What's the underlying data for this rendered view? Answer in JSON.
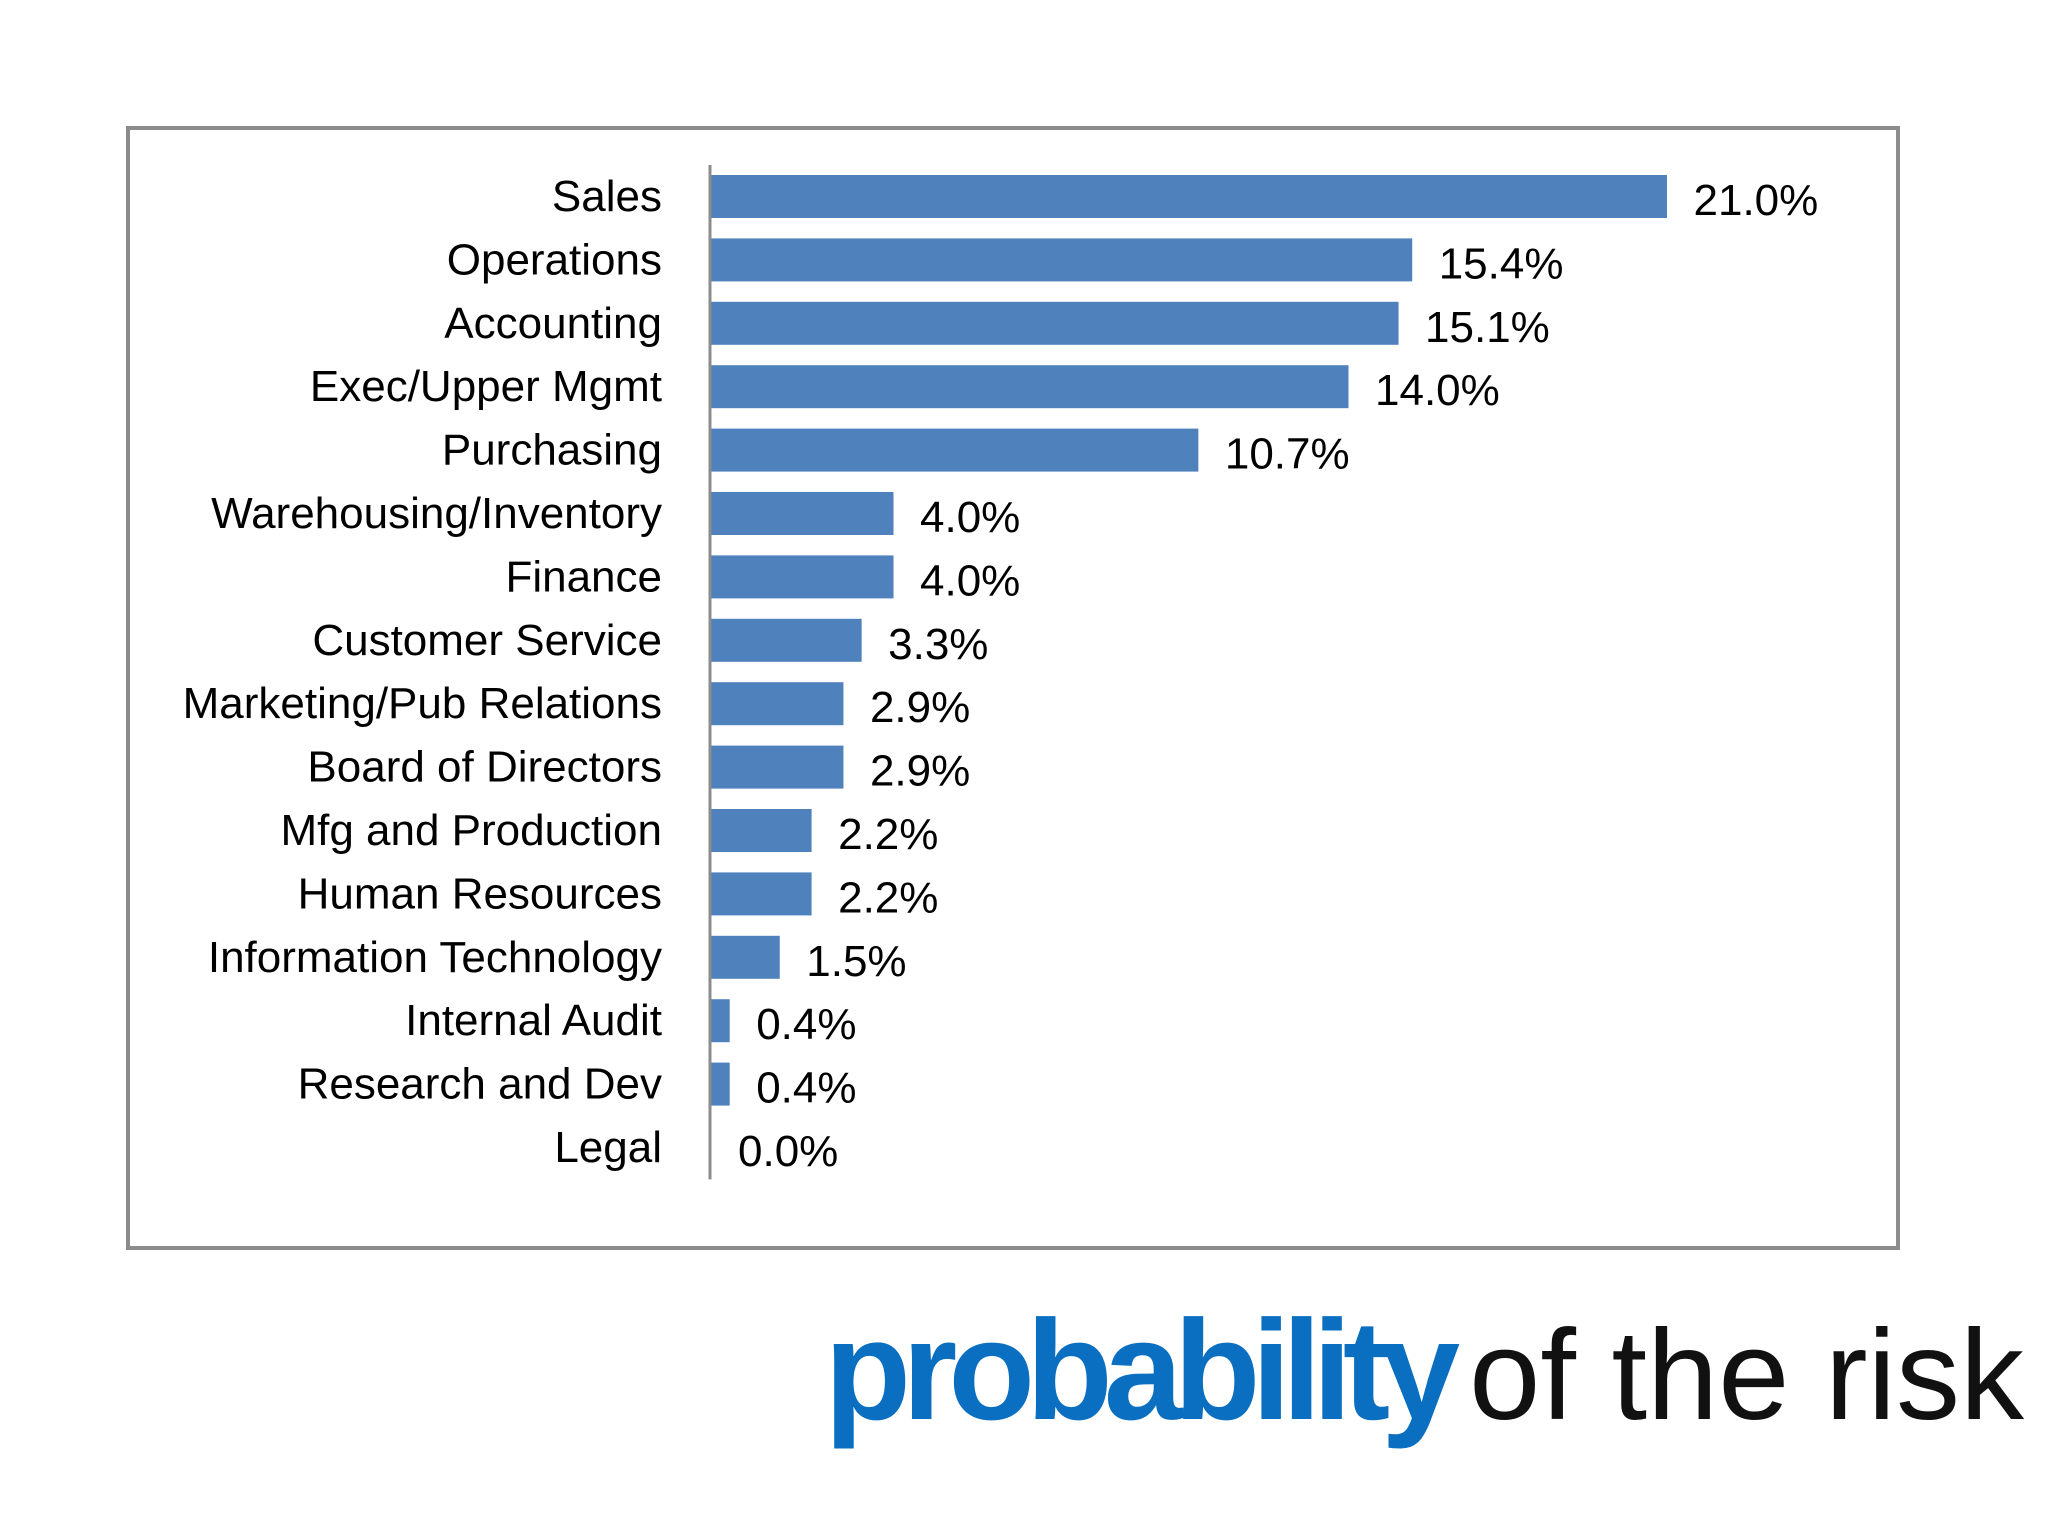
{
  "chart_data": {
    "type": "bar",
    "orientation": "horizontal",
    "categories": [
      "Sales",
      "Operations",
      "Accounting",
      "Exec/Upper Mgmt",
      "Purchasing",
      "Warehousing/Inventory",
      "Finance",
      "Customer Service",
      "Marketing/Pub Relations",
      "Board of Directors",
      "Mfg and Production",
      "Human Resources",
      "Information Technology",
      "Internal Audit",
      "Research and Dev",
      "Legal"
    ],
    "values": [
      21.0,
      15.4,
      15.1,
      14.0,
      10.7,
      4.0,
      4.0,
      3.3,
      2.9,
      2.9,
      2.2,
      2.2,
      1.5,
      0.4,
      0.4,
      0.0
    ],
    "value_labels": [
      "21.0%",
      "15.4%",
      "15.1%",
      "14.0%",
      "10.7%",
      "4.0%",
      "4.0%",
      "3.3%",
      "2.9%",
      "2.9%",
      "2.2%",
      "2.2%",
      "1.5%",
      "0.4%",
      "0.4%",
      "0.0%"
    ],
    "unit": "%",
    "bar_color": "#4f81bd",
    "grid": false,
    "legend": "none"
  },
  "caption": {
    "emphasis": "probability",
    "rest": "of the risk",
    "emphasis_color": "#0a6fc0"
  }
}
